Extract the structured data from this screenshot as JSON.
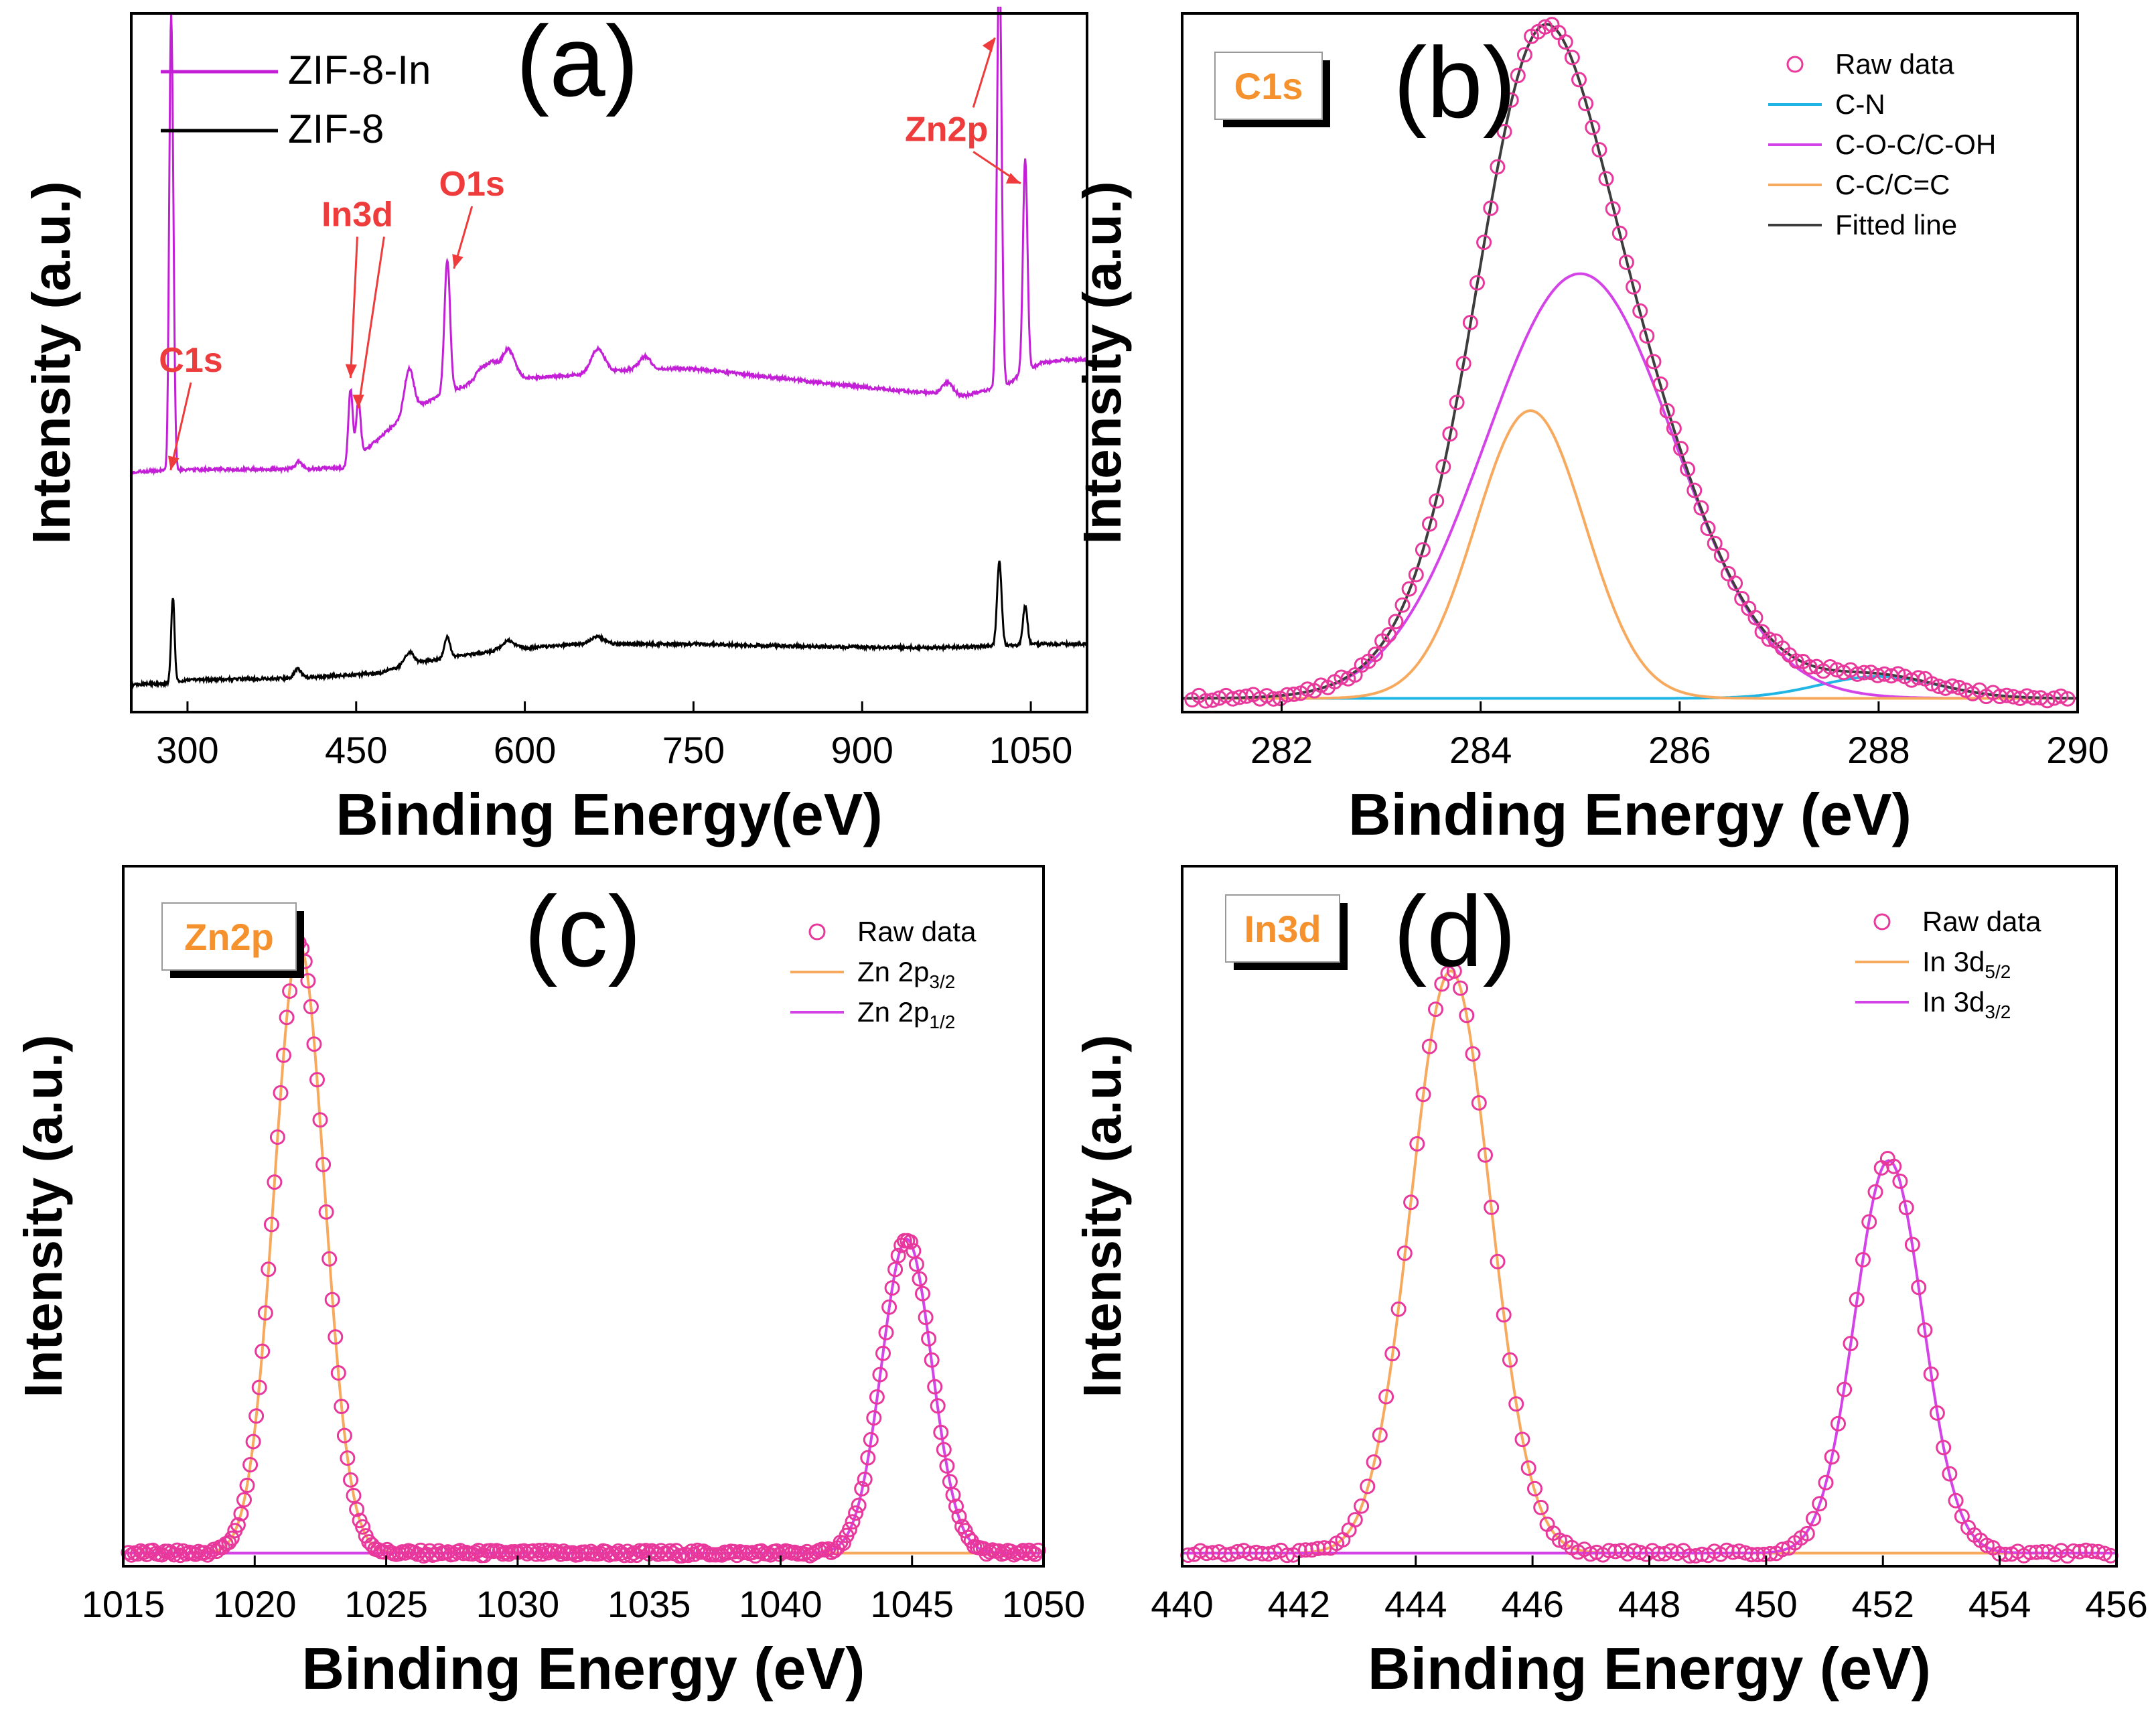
{
  "chart_data": [
    {
      "panel": "a",
      "type": "line",
      "panel_label": "(a)",
      "xlabel": "Binding Energy(eV)",
      "ylabel": "Intensity (a.u.)",
      "xlim": [
        250,
        1100
      ],
      "ylim": [
        0,
        100
      ],
      "xticks": [
        "300",
        "450",
        "600",
        "750",
        "900",
        "1050"
      ],
      "legend": [
        "ZIF-8-In",
        "ZIF-8"
      ],
      "colors": {
        "ZIF-8-In": "#c21fd6",
        "ZIF-8": "#000000",
        "annotation": "#ee3b3b"
      },
      "series": [
        {
          "name": "ZIF-8-In",
          "baseline": [
            [
              250,
              39.5
            ],
            [
              280,
              39.8
            ],
            [
              300,
              39.9
            ],
            [
              400,
              40.0
            ],
            [
              440,
              40.2
            ],
            [
              470,
              45
            ],
            [
              500,
              50
            ],
            [
              550,
              54
            ],
            [
              600,
              55
            ],
            [
              650,
              55.5
            ],
            [
              700,
              56.5
            ],
            [
              750,
              56.5
            ],
            [
              800,
              55.5
            ],
            [
              850,
              54.5
            ],
            [
              900,
              53.5
            ],
            [
              960,
              52.5
            ],
            [
              990,
              52
            ],
            [
              1010,
              53
            ],
            [
              1030,
              54
            ],
            [
              1040,
              55.5
            ],
            [
              1060,
              57.5
            ],
            [
              1080,
              58
            ],
            [
              1100,
              58
            ]
          ],
          "peaks": [
            [
              285,
              60,
              1.5
            ],
            [
              287,
              30,
              1.5
            ],
            [
              399,
              1.2,
              3
            ],
            [
              445,
              12,
              2
            ],
            [
              452,
              9,
              2
            ],
            [
              497,
              7,
              4
            ],
            [
              531,
              22,
              2.5
            ],
            [
              560,
              2,
              4
            ],
            [
              570,
              3,
              5
            ],
            [
              585,
              5,
              6
            ],
            [
              665,
              4,
              6
            ],
            [
              707,
              2,
              5
            ],
            [
              976,
              2,
              5
            ],
            [
              1022,
              72,
              2
            ],
            [
              1045,
              35,
              2
            ]
          ]
        },
        {
          "name": "ZIF-8",
          "baseline": [
            [
              250,
              4.5
            ],
            [
              280,
              4.7
            ],
            [
              300,
              5.3
            ],
            [
              400,
              5.6
            ],
            [
              470,
              6.4
            ],
            [
              500,
              8
            ],
            [
              550,
              9.5
            ],
            [
              600,
              10.5
            ],
            [
              650,
              11.2
            ],
            [
              700,
              11.2
            ],
            [
              750,
              11.2
            ],
            [
              800,
              11.0
            ],
            [
              850,
              10.8
            ],
            [
              900,
              10.7
            ],
            [
              960,
              10.6
            ],
            [
              1010,
              10.8
            ],
            [
              1040,
              11
            ],
            [
              1060,
              11.2
            ],
            [
              1080,
              11.2
            ],
            [
              1100,
              11.2
            ]
          ],
          "peaks": [
            [
              287,
              14,
              1.5
            ],
            [
              398,
              1.5,
              3
            ],
            [
              497,
              2,
              4
            ],
            [
              531,
              3.5,
              2.5
            ],
            [
              585,
              1.5,
              6
            ],
            [
              665,
              1.2,
              6
            ],
            [
              1022,
              14,
              2
            ],
            [
              1045,
              6.5,
              2
            ]
          ]
        }
      ],
      "annotations": [
        {
          "text": "C1s",
          "target": [
            285,
            39.8
          ],
          "label_at": [
            303,
            56
          ]
        },
        {
          "text": "In3d",
          "target": [
            445,
            55
          ],
          "label_at": [
            451,
            80
          ]
        },
        {
          "text": "In3d",
          "target": [
            452,
            50
          ],
          "label_at": [
            451,
            80
          ]
        },
        {
          "text": "O1s",
          "target": [
            537,
            73
          ],
          "label_at": [
            553,
            85
          ]
        },
        {
          "text": "Zn2p",
          "target": [
            1018,
            111
          ],
          "label_at": [
            975,
            94
          ]
        },
        {
          "text": "Zn2p",
          "target": [
            1041,
            87
          ],
          "label_at": [
            975,
            94
          ]
        }
      ]
    },
    {
      "panel": "b",
      "type": "line",
      "panel_label": "(b)",
      "tag": "C1s",
      "xlabel": "Binding Energy (eV)",
      "ylabel": "Intensity (a.u.)",
      "xlim": [
        281,
        290
      ],
      "ylim": [
        0,
        100
      ],
      "xticks": [
        "282",
        "284",
        "286",
        "288",
        "290"
      ],
      "legend": [
        "Raw data",
        "C-N",
        "C-O-C/C-OH",
        "C-C/C=C",
        "Fitted line"
      ],
      "colors": {
        "Raw data": "#e8389c",
        "C-N": "#1fb5e5",
        "C-O-C/C-OH": "#d443e8",
        "C-C/C=C": "#f7a95e",
        "Fitted line": "#3d3d3d"
      },
      "baseline": 1.0,
      "components": [
        {
          "name": "C-N",
          "center": 288.0,
          "amplitude": 3.2,
          "sigma": 0.6
        },
        {
          "name": "C-O-C/C-OH",
          "center": 285.0,
          "amplitude": 62.0,
          "sigma": 0.95
        },
        {
          "name": "C-C/C=C",
          "center": 284.5,
          "amplitude": 42.0,
          "sigma": 0.55
        }
      ],
      "raw_data_x_range": [
        281.1,
        289.9
      ],
      "raw_data_points": 130
    },
    {
      "panel": "c",
      "type": "line",
      "panel_label": "(c)",
      "tag": "Zn2p",
      "xlabel": "Binding Energy (eV)",
      "ylabel": "Intensity (a.u.)",
      "xlim": [
        1015,
        1050
      ],
      "ylim": [
        0,
        100
      ],
      "xticks": [
        "1015",
        "1020",
        "1025",
        "1030",
        "1035",
        "1040",
        "1045",
        "1050"
      ],
      "legend": [
        "Raw data",
        "Zn 2p3/2",
        "Zn 2p1/2"
      ],
      "legend_parts": [
        {
          "base": "Raw data",
          "sub": ""
        },
        {
          "base": "Zn 2p",
          "sub": "3/2"
        },
        {
          "base": "Zn 2p",
          "sub": "1/2"
        }
      ],
      "colors": {
        "Raw data": "#e8389c",
        "Zn 2p3/2": "#f7a95e",
        "Zn 2p1/2": "#d443e8"
      },
      "baseline": 1.0,
      "components": [
        {
          "name": "Zn 2p3/2",
          "center": 1021.7,
          "amplitude": 93.0,
          "sigma": 0.95
        },
        {
          "name": "Zn 2p1/2",
          "center": 1044.8,
          "amplitude": 48.0,
          "sigma": 0.95
        }
      ],
      "raw_data_x_range": [
        1015.2,
        1049.8
      ],
      "raw_data_points": 300
    },
    {
      "panel": "d",
      "type": "line",
      "panel_label": "(d)",
      "tag": "In3d",
      "xlabel": "Binding Energy (eV)",
      "ylabel": "Intensity (a.u.)",
      "xlim": [
        440,
        456
      ],
      "ylim": [
        0,
        100
      ],
      "xticks": [
        "440",
        "442",
        "444",
        "446",
        "448",
        "450",
        "452",
        "454",
        "456"
      ],
      "legend": [
        "Raw data",
        "In 3d5/2",
        "In 3d3/2"
      ],
      "legend_parts": [
        {
          "base": "Raw data",
          "sub": ""
        },
        {
          "base": "In 3d",
          "sub": "5/2"
        },
        {
          "base": "In 3d",
          "sub": "3/2"
        }
      ],
      "colors": {
        "Raw data": "#e8389c",
        "In 3d5/2": "#f7a95e",
        "In 3d3/2": "#d443e8"
      },
      "baseline": 1.0,
      "components": [
        {
          "name": "In 3d5/2",
          "center": 444.6,
          "amplitude": 89.0,
          "sigma": 0.68
        },
        {
          "name": "In 3d3/2",
          "center": 452.1,
          "amplitude": 60.0,
          "sigma": 0.58
        }
      ],
      "raw_data_x_range": [
        440.1,
        455.9
      ],
      "raw_data_points": 150
    }
  ]
}
